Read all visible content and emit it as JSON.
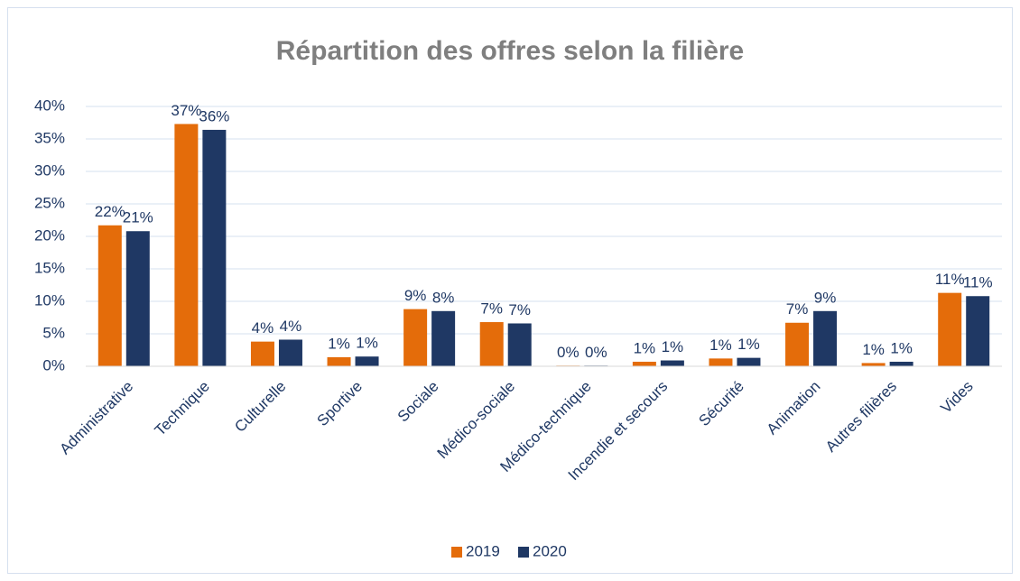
{
  "chart_data": {
    "type": "bar",
    "title": "Répartition des offres selon la filière",
    "categories": [
      "Administrative",
      "Technique",
      "Culturelle",
      "Sportive",
      "Sociale",
      "Médico-sociale",
      "Médico-technique",
      "Incendie et secours",
      "Sécurité",
      "Animation",
      "Autres filières",
      "Vides"
    ],
    "series": [
      {
        "name": "2019",
        "color": "#e46c0a",
        "values": [
          21.7,
          37.3,
          3.8,
          1.4,
          8.8,
          6.8,
          0.1,
          0.7,
          1.2,
          6.7,
          0.5,
          11.3
        ],
        "value_labels": [
          "22%",
          "37%",
          "4%",
          "1%",
          "9%",
          "7%",
          "0%",
          "1%",
          "1%",
          "7%",
          "1%",
          "11%"
        ]
      },
      {
        "name": "2020",
        "color": "#1f3864",
        "values": [
          20.8,
          36.4,
          4.1,
          1.5,
          8.5,
          6.6,
          0.1,
          0.9,
          1.3,
          8.5,
          0.7,
          10.8
        ],
        "value_labels": [
          "21%",
          "36%",
          "4%",
          "1%",
          "8%",
          "7%",
          "0%",
          "1%",
          "1%",
          "9%",
          "1%",
          "11%"
        ]
      }
    ],
    "ylim": [
      0,
      40
    ],
    "yticks": [
      {
        "value": 0,
        "label": "0%"
      },
      {
        "value": 5,
        "label": "5%"
      },
      {
        "value": 10,
        "label": "10%"
      },
      {
        "value": 15,
        "label": "15%"
      },
      {
        "value": 20,
        "label": "20%"
      },
      {
        "value": 25,
        "label": "25%"
      },
      {
        "value": 30,
        "label": "30%"
      },
      {
        "value": 35,
        "label": "35%"
      },
      {
        "value": 40,
        "label": "40%"
      }
    ],
    "grid": true,
    "legend": "bottom"
  }
}
